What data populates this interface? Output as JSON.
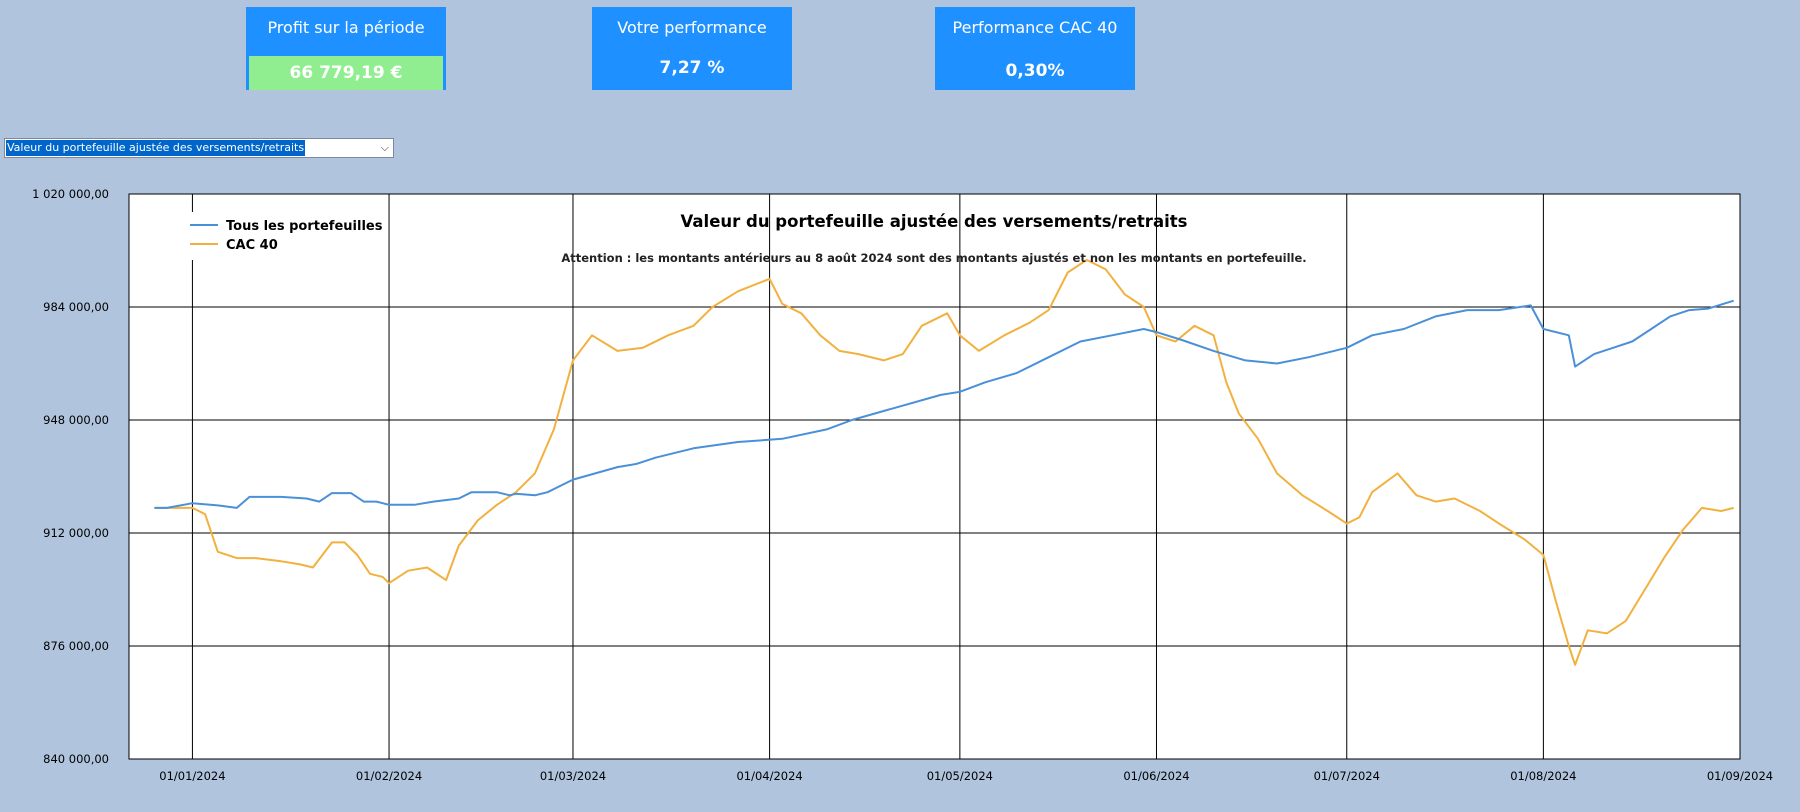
{
  "kpis": {
    "profit": {
      "title": "Profit sur la période",
      "value": "66 779,19 €"
    },
    "performance": {
      "title": "Votre performance",
      "value": "7,27 %"
    },
    "cac40": {
      "title": "Performance CAC 40",
      "value": "0,30%"
    }
  },
  "selector": {
    "value": "Valeur du portefeuille ajustée des versements/retraits",
    "arrow_icon": "chevron-down-icon"
  },
  "colors": {
    "portfolio": "#4A90D9",
    "cac40": "#F2B13F",
    "kpi_bg": "#1E90FF",
    "profit_bg": "#90EE90",
    "page_bg": "#B0C4DE"
  },
  "chart_data": {
    "type": "line",
    "title": "Valeur du portefeuille ajustée des versements/retraits",
    "subtitle": "Attention : les montants antérieurs au 8 août 2024 sont des montants ajustés et non les montants en portefeuille.",
    "xlabel": "",
    "ylabel": "",
    "ylim": [
      840000,
      1020000
    ],
    "yticks": [
      840000,
      876000,
      912000,
      948000,
      984000,
      1020000
    ],
    "ytick_labels": [
      "840 000,00",
      "876 000,00",
      "912 000,00",
      "948 000,00",
      "984 000,00",
      "1 020 000,00"
    ],
    "xlim": [
      "2023-12-22",
      "2024-09-01"
    ],
    "xticks": [
      "2024-01-01",
      "2024-02-01",
      "2024-03-01",
      "2024-04-01",
      "2024-05-01",
      "2024-06-01",
      "2024-07-01",
      "2024-08-01",
      "2024-09-01"
    ],
    "xtick_labels": [
      "01/01/2024",
      "01/02/2024",
      "01/03/2024",
      "01/04/2024",
      "01/05/2024",
      "01/06/2024",
      "01/07/2024",
      "01/08/2024",
      "01/09/2024"
    ],
    "grid": true,
    "legend": "top-left",
    "series": [
      {
        "name": "Tous les portefeuilles",
        "points": [
          [
            "2023-12-26",
            920000
          ],
          [
            "2023-12-28",
            920000
          ],
          [
            "2024-01-01",
            921500
          ],
          [
            "2024-01-05",
            920800
          ],
          [
            "2024-01-08",
            920000
          ],
          [
            "2024-01-10",
            923500
          ],
          [
            "2024-01-15",
            923500
          ],
          [
            "2024-01-19",
            923000
          ],
          [
            "2024-01-21",
            922000
          ],
          [
            "2024-01-23",
            924700
          ],
          [
            "2024-01-26",
            924700
          ],
          [
            "2024-01-28",
            922000
          ],
          [
            "2024-01-30",
            922000
          ],
          [
            "2024-02-01",
            921000
          ],
          [
            "2024-02-05",
            921000
          ],
          [
            "2024-02-08",
            922000
          ],
          [
            "2024-02-12",
            923000
          ],
          [
            "2024-02-14",
            925000
          ],
          [
            "2024-02-18",
            925000
          ],
          [
            "2024-02-20",
            924000
          ],
          [
            "2024-02-21",
            924500
          ],
          [
            "2024-02-24",
            924000
          ],
          [
            "2024-02-26",
            925000
          ],
          [
            "2024-02-28",
            927000
          ],
          [
            "2024-03-01",
            929000
          ],
          [
            "2024-03-08",
            933000
          ],
          [
            "2024-03-11",
            934000
          ],
          [
            "2024-03-14",
            936000
          ],
          [
            "2024-03-20",
            939000
          ],
          [
            "2024-03-27",
            941000
          ],
          [
            "2024-04-03",
            942000
          ],
          [
            "2024-04-10",
            945000
          ],
          [
            "2024-04-14",
            948000
          ],
          [
            "2024-04-21",
            952000
          ],
          [
            "2024-04-28",
            956000
          ],
          [
            "2024-05-01",
            957000
          ],
          [
            "2024-05-05",
            960000
          ],
          [
            "2024-05-10",
            963000
          ],
          [
            "2024-05-15",
            968000
          ],
          [
            "2024-05-20",
            973000
          ],
          [
            "2024-05-25",
            975000
          ],
          [
            "2024-05-30",
            977000
          ],
          [
            "2024-06-01",
            976000
          ],
          [
            "2024-06-05",
            973500
          ],
          [
            "2024-06-10",
            970000
          ],
          [
            "2024-06-15",
            967000
          ],
          [
            "2024-06-20",
            966000
          ],
          [
            "2024-06-25",
            968000
          ],
          [
            "2024-07-01",
            971000
          ],
          [
            "2024-07-05",
            975000
          ],
          [
            "2024-07-10",
            977000
          ],
          [
            "2024-07-15",
            981000
          ],
          [
            "2024-07-20",
            983000
          ],
          [
            "2024-07-25",
            983000
          ],
          [
            "2024-07-30",
            984500
          ],
          [
            "2024-08-01",
            977000
          ],
          [
            "2024-08-05",
            975000
          ],
          [
            "2024-08-06",
            965000
          ],
          [
            "2024-08-09",
            969000
          ],
          [
            "2024-08-12",
            971000
          ],
          [
            "2024-08-15",
            973000
          ],
          [
            "2024-08-18",
            977000
          ],
          [
            "2024-08-21",
            981000
          ],
          [
            "2024-08-24",
            983000
          ],
          [
            "2024-08-27",
            983500
          ],
          [
            "2024-08-31",
            986000
          ]
        ]
      },
      {
        "name": "CAC 40",
        "points": [
          [
            "2023-12-26",
            920000
          ],
          [
            "2023-12-28",
            920000
          ],
          [
            "2024-01-01",
            920000
          ],
          [
            "2024-01-03",
            918000
          ],
          [
            "2024-01-05",
            906000
          ],
          [
            "2024-01-08",
            904000
          ],
          [
            "2024-01-11",
            904000
          ],
          [
            "2024-01-15",
            903000
          ],
          [
            "2024-01-18",
            902000
          ],
          [
            "2024-01-20",
            901000
          ],
          [
            "2024-01-23",
            909000
          ],
          [
            "2024-01-25",
            909000
          ],
          [
            "2024-01-27",
            905000
          ],
          [
            "2024-01-29",
            899000
          ],
          [
            "2024-01-31",
            898000
          ],
          [
            "2024-02-01",
            896000
          ],
          [
            "2024-02-04",
            900000
          ],
          [
            "2024-02-07",
            901000
          ],
          [
            "2024-02-10",
            897000
          ],
          [
            "2024-02-12",
            908000
          ],
          [
            "2024-02-15",
            916000
          ],
          [
            "2024-02-18",
            921000
          ],
          [
            "2024-02-21",
            925000
          ],
          [
            "2024-02-24",
            931000
          ],
          [
            "2024-02-27",
            945000
          ],
          [
            "2024-03-01",
            967000
          ],
          [
            "2024-03-04",
            975000
          ],
          [
            "2024-03-08",
            970000
          ],
          [
            "2024-03-12",
            971000
          ],
          [
            "2024-03-16",
            975000
          ],
          [
            "2024-03-20",
            978000
          ],
          [
            "2024-03-23",
            984000
          ],
          [
            "2024-03-27",
            989000
          ],
          [
            "2024-04-01",
            993000
          ],
          [
            "2024-04-03",
            985000
          ],
          [
            "2024-04-06",
            982000
          ],
          [
            "2024-04-09",
            975000
          ],
          [
            "2024-04-12",
            970000
          ],
          [
            "2024-04-15",
            969000
          ],
          [
            "2024-04-19",
            967000
          ],
          [
            "2024-04-22",
            969000
          ],
          [
            "2024-04-25",
            978000
          ],
          [
            "2024-04-29",
            982000
          ],
          [
            "2024-05-01",
            975000
          ],
          [
            "2024-05-04",
            970000
          ],
          [
            "2024-05-08",
            975000
          ],
          [
            "2024-05-12",
            979000
          ],
          [
            "2024-05-15",
            983000
          ],
          [
            "2024-05-18",
            995000
          ],
          [
            "2024-05-21",
            999000
          ],
          [
            "2024-05-24",
            996000
          ],
          [
            "2024-05-27",
            988000
          ],
          [
            "2024-05-30",
            984000
          ],
          [
            "2024-06-01",
            975000
          ],
          [
            "2024-06-04",
            973000
          ],
          [
            "2024-06-07",
            978000
          ],
          [
            "2024-06-10",
            975000
          ],
          [
            "2024-06-12",
            960000
          ],
          [
            "2024-06-14",
            950000
          ],
          [
            "2024-06-17",
            942000
          ],
          [
            "2024-06-20",
            931000
          ],
          [
            "2024-06-24",
            924000
          ],
          [
            "2024-06-28",
            919000
          ],
          [
            "2024-07-01",
            915000
          ],
          [
            "2024-07-03",
            917000
          ],
          [
            "2024-07-05",
            925000
          ],
          [
            "2024-07-09",
            931000
          ],
          [
            "2024-07-12",
            924000
          ],
          [
            "2024-07-15",
            922000
          ],
          [
            "2024-07-18",
            923000
          ],
          [
            "2024-07-22",
            919000
          ],
          [
            "2024-07-25",
            915000
          ],
          [
            "2024-07-29",
            910000
          ],
          [
            "2024-08-01",
            905000
          ],
          [
            "2024-08-03",
            890000
          ],
          [
            "2024-08-05",
            876000
          ],
          [
            "2024-08-06",
            870000
          ],
          [
            "2024-08-08",
            881000
          ],
          [
            "2024-08-11",
            880000
          ],
          [
            "2024-08-14",
            884000
          ],
          [
            "2024-08-17",
            894000
          ],
          [
            "2024-08-20",
            904000
          ],
          [
            "2024-08-23",
            913000
          ],
          [
            "2024-08-26",
            920000
          ],
          [
            "2024-08-29",
            919000
          ],
          [
            "2024-08-31",
            920000
          ]
        ]
      }
    ]
  }
}
